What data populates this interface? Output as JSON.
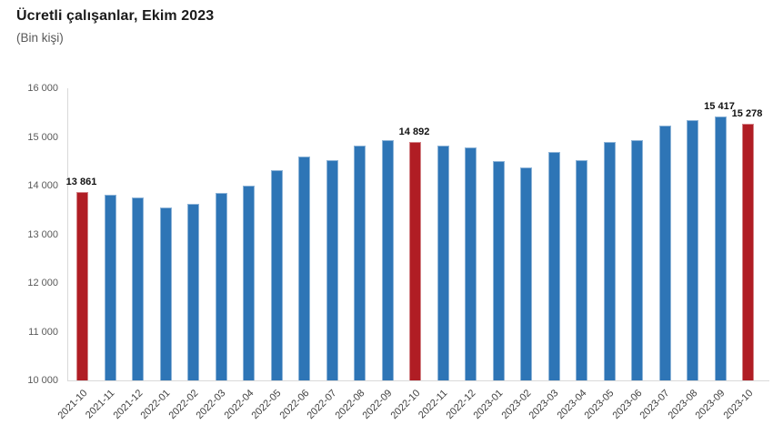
{
  "header": {
    "title": "Ücretli çalışanlar, Ekim 2023",
    "subtitle": "(Bin kişi)"
  },
  "chart_data": {
    "type": "bar",
    "title": "Ücretli çalışanlar, Ekim 2023",
    "subtitle": "(Bin kişi)",
    "xlabel": "",
    "ylabel": "",
    "ylim": [
      10000,
      16000
    ],
    "yticks": [
      10000,
      11000,
      12000,
      13000,
      14000,
      15000,
      16000
    ],
    "ytick_labels": [
      "10 000",
      "11 000",
      "12 000",
      "13 000",
      "14 000",
      "15 000",
      "16 000"
    ],
    "grid": false,
    "legend": false,
    "categories": [
      "2021-10",
      "2021-11",
      "2021-12",
      "2022-01",
      "2022-02",
      "2022-03",
      "2022-04",
      "2022-05",
      "2022-06",
      "2022-07",
      "2022-08",
      "2022-09",
      "2022-10",
      "2022-11",
      "2022-12",
      "2023-01",
      "2023-02",
      "2023-03",
      "2023-04",
      "2023-05",
      "2023-06",
      "2023-07",
      "2023-08",
      "2023-09",
      "2023-10"
    ],
    "values": [
      13861,
      13810,
      13750,
      13560,
      13620,
      13860,
      14000,
      14310,
      14600,
      14520,
      14820,
      14930,
      14892,
      14820,
      14780,
      14510,
      14380,
      14700,
      14520,
      14900,
      14940,
      15240,
      15340,
      15417,
      15278
    ],
    "highlighted_indices": [
      0,
      12,
      24
    ],
    "data_labels": [
      {
        "index": 0,
        "category": "2021-10",
        "text": "13 861"
      },
      {
        "index": 12,
        "category": "2022-10",
        "text": "14 892"
      },
      {
        "index": 23,
        "category": "2023-09",
        "text": "15 417"
      },
      {
        "index": 24,
        "category": "2023-10",
        "text": "15 278"
      }
    ],
    "colors": {
      "bar_default": "#2E75B6",
      "bar_highlight": "#B01D24",
      "axis_line": "#D9D9D9",
      "tick_text": "#595959",
      "data_label_text": "#111111"
    }
  }
}
